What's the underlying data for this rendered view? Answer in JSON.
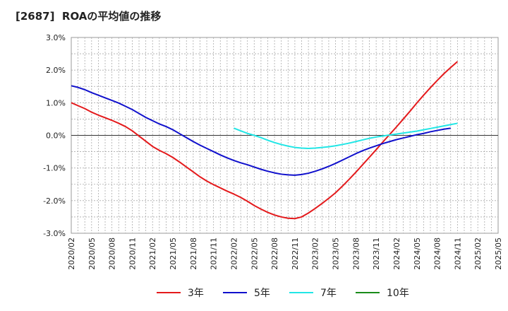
{
  "chart_data": {
    "type": "line",
    "title": "[2687]  ROAの平均値の推移",
    "xlabel": "",
    "ylabel": "",
    "ylim": [
      -3.0,
      3.0
    ],
    "yticks": [
      "3.0%",
      "2.0%",
      "1.0%",
      "0.0%",
      "-1.0%",
      "-2.0%",
      "-3.0%"
    ],
    "x_ticks": [
      "2020/02",
      "2020/05",
      "2020/08",
      "2020/11",
      "2021/02",
      "2021/05",
      "2021/08",
      "2021/11",
      "2022/02",
      "2022/05",
      "2022/08",
      "2022/11",
      "2023/02",
      "2023/05",
      "2023/08",
      "2023/11",
      "2024/02",
      "2024/05",
      "2024/08",
      "2024/11",
      "2025/02",
      "2025/05"
    ],
    "grid": true,
    "legend_position": "bottom",
    "series": [
      {
        "name": "3年",
        "color": "#e41a1c",
        "values": [
          1.0,
          0.91,
          0.82,
          0.71,
          0.62,
          0.54,
          0.46,
          0.37,
          0.27,
          0.14,
          -0.02,
          -0.18,
          -0.34,
          -0.46,
          -0.56,
          -0.68,
          -0.82,
          -0.97,
          -1.12,
          -1.27,
          -1.4,
          -1.51,
          -1.61,
          -1.71,
          -1.8,
          -1.9,
          -2.02,
          -2.15,
          -2.26,
          -2.36,
          -2.44,
          -2.5,
          -2.54,
          -2.55,
          -2.5,
          -2.38,
          -2.24,
          -2.09,
          -1.93,
          -1.76,
          -1.56,
          -1.35,
          -1.13,
          -0.9,
          -0.67,
          -0.44,
          -0.2,
          0.03,
          0.26,
          0.5,
          0.74,
          0.99,
          1.23,
          1.46,
          1.68,
          1.89,
          2.08,
          2.26
        ]
      },
      {
        "name": "5年",
        "color": "#1010cc",
        "values": [
          1.52,
          1.47,
          1.4,
          1.31,
          1.23,
          1.15,
          1.07,
          0.99,
          0.89,
          0.79,
          0.67,
          0.55,
          0.45,
          0.35,
          0.27,
          0.17,
          0.05,
          -0.07,
          -0.19,
          -0.3,
          -0.4,
          -0.5,
          -0.6,
          -0.69,
          -0.77,
          -0.84,
          -0.9,
          -0.97,
          -1.04,
          -1.1,
          -1.15,
          -1.19,
          -1.21,
          -1.22,
          -1.2,
          -1.16,
          -1.1,
          -1.03,
          -0.95,
          -0.86,
          -0.76,
          -0.66,
          -0.56,
          -0.47,
          -0.39,
          -0.32,
          -0.25,
          -0.19,
          -0.13,
          -0.08,
          -0.03,
          0.02,
          0.06,
          0.11,
          0.15,
          0.19,
          0.22
        ]
      },
      {
        "name": "7年",
        "color": "#22e6e6",
        "offset": 24,
        "values": [
          0.22,
          0.14,
          0.06,
          0.0,
          -0.07,
          -0.15,
          -0.22,
          -0.28,
          -0.33,
          -0.37,
          -0.39,
          -0.4,
          -0.39,
          -0.37,
          -0.35,
          -0.32,
          -0.28,
          -0.24,
          -0.19,
          -0.14,
          -0.09,
          -0.05,
          -0.02,
          0.01,
          0.04,
          0.07,
          0.1,
          0.13,
          0.17,
          0.21,
          0.25,
          0.29,
          0.33,
          0.37
        ]
      },
      {
        "name": "10年",
        "color": "#1a8c1a",
        "values": []
      }
    ]
  }
}
